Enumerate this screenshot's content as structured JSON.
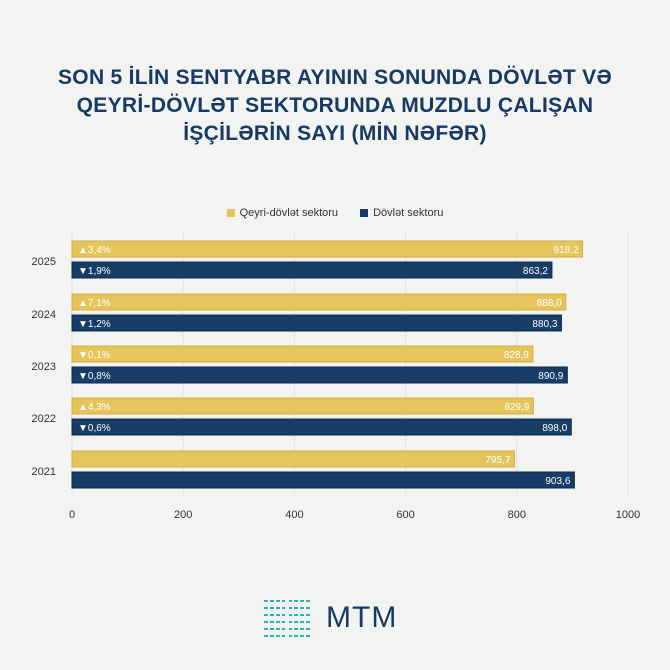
{
  "title_lines": [
    "SON 5 İLİN SENTYABR AYININ SONUNDA DÖVLƏT VƏ",
    "QEYRİ-DÖVLƏT SEKTORUNDA MUZDLU ÇALIŞAN",
    "İŞÇİLƏRİN SAYI (MİN NƏFƏR)"
  ],
  "logo_text": "MTM",
  "chart_data": {
    "type": "bar",
    "orientation": "horizontal",
    "categories": [
      "2025",
      "2024",
      "2023",
      "2022",
      "2021"
    ],
    "series": [
      {
        "name": "Qeyri-dövlət sektoru",
        "color": "#e6c45c",
        "values": [
          918.2,
          888.0,
          828.9,
          829.9,
          795.7
        ],
        "labels": [
          "918,2",
          "888,0",
          "828,9",
          "829,9",
          "795,7"
        ],
        "changes": [
          "▲3,4%",
          "▲7,1%",
          "▼0,1%",
          "▲4,3%",
          ""
        ]
      },
      {
        "name": "Dövlət sektoru",
        "color": "#173d67",
        "values": [
          863.2,
          880.3,
          890.9,
          898.0,
          903.6
        ],
        "labels": [
          "863,2",
          "880,3",
          "890,9",
          "898,0",
          "903,6"
        ],
        "changes": [
          "▼1,9%",
          "▼1,2%",
          "▼0,8%",
          "▼0,6%",
          ""
        ]
      }
    ],
    "xlim": [
      0,
      1000
    ],
    "xticks": [
      "0",
      "200",
      "400",
      "600",
      "800",
      "1000"
    ],
    "grid": true,
    "legend": "top-center"
  }
}
